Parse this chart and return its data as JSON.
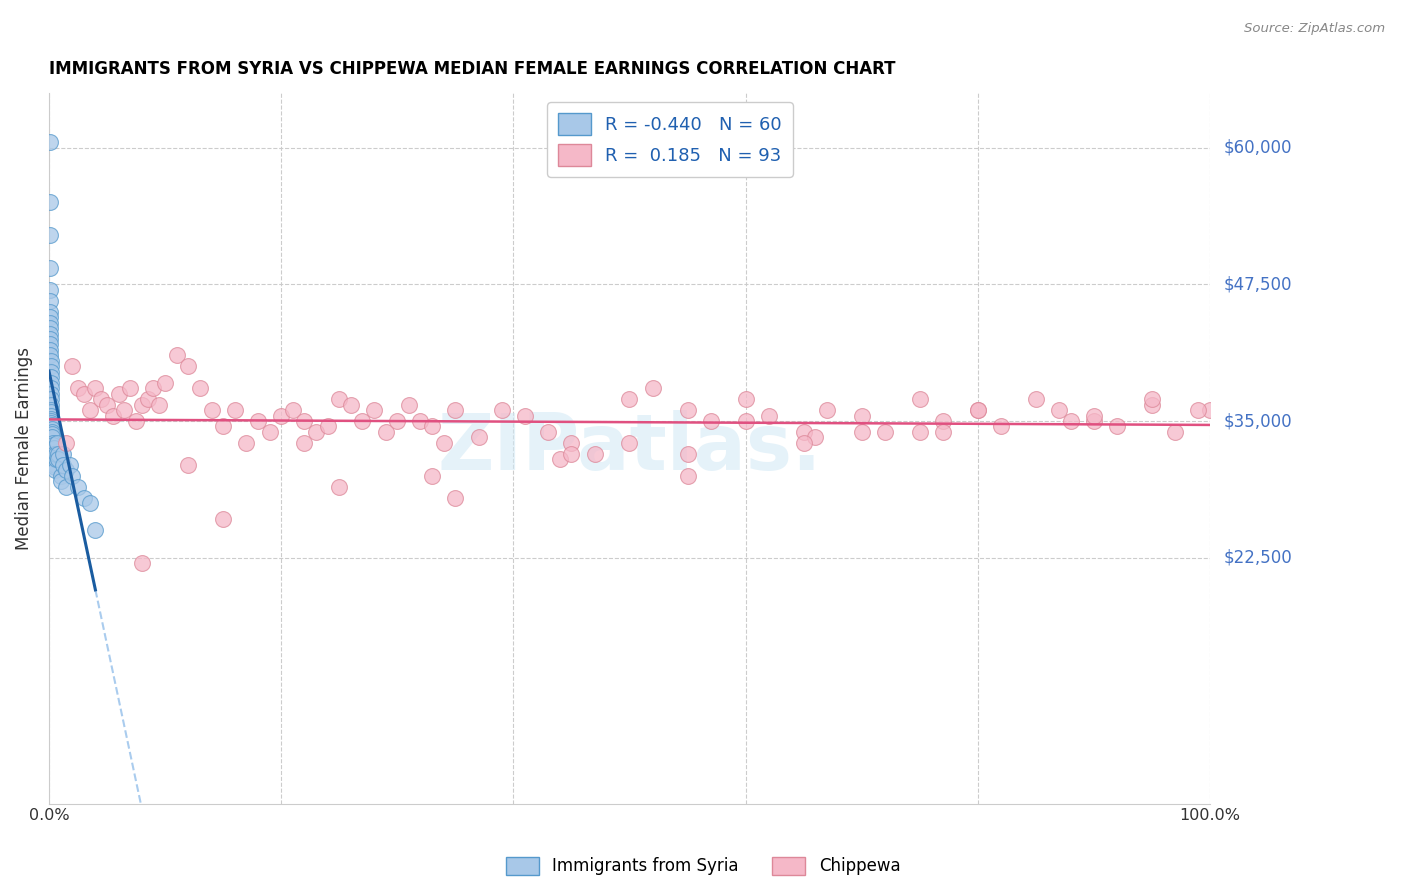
{
  "title": "IMMIGRANTS FROM SYRIA VS CHIPPEWA MEDIAN FEMALE EARNINGS CORRELATION CHART",
  "source": "Source: ZipAtlas.com",
  "ylabel": "Median Female Earnings",
  "blue_R": -0.44,
  "blue_N": 60,
  "pink_R": 0.185,
  "pink_N": 93,
  "blue_face": "#a8c8e8",
  "blue_edge": "#5599cc",
  "pink_face": "#f5b8c8",
  "pink_edge": "#dd8899",
  "blue_line_color": "#1a5ca0",
  "pink_line_color": "#e05080",
  "dash_color": "#aaccee",
  "legend_label1": "Immigrants from Syria",
  "legend_label2": "Chippewa",
  "label_color": "#4472C4",
  "yaxis_values": [
    22500,
    35000,
    47500,
    60000
  ],
  "yaxis_labels": [
    "$22,500",
    "$35,000",
    "$47,500",
    "$60,000"
  ],
  "ylim": [
    0,
    65000
  ],
  "xlim": [
    0,
    100
  ],
  "xtick_left": "0.0%",
  "xtick_right": "100.0%",
  "grid_color": "#cccccc",
  "watermark": "ZIPatlas.",
  "blue_x": [
    0.05,
    0.05,
    0.05,
    0.05,
    0.05,
    0.08,
    0.08,
    0.08,
    0.1,
    0.1,
    0.1,
    0.1,
    0.1,
    0.12,
    0.12,
    0.15,
    0.15,
    0.15,
    0.15,
    0.15,
    0.15,
    0.15,
    0.15,
    0.18,
    0.18,
    0.2,
    0.2,
    0.2,
    0.2,
    0.2,
    0.25,
    0.25,
    0.3,
    0.3,
    0.3,
    0.35,
    0.35,
    0.4,
    0.4,
    0.4,
    0.5,
    0.5,
    0.5,
    0.6,
    0.6,
    0.7,
    0.8,
    0.8,
    1.0,
    1.0,
    1.2,
    1.2,
    1.5,
    1.5,
    1.8,
    2.0,
    2.5,
    3.0,
    3.5,
    4.0
  ],
  "blue_y": [
    60500,
    55000,
    52000,
    49000,
    47000,
    46000,
    45000,
    44500,
    44000,
    43500,
    43000,
    42500,
    42000,
    41500,
    41000,
    40500,
    40000,
    39500,
    39000,
    38500,
    38000,
    37500,
    37000,
    36500,
    36000,
    35800,
    35500,
    35200,
    35000,
    34800,
    34600,
    34300,
    34000,
    33800,
    33500,
    33000,
    32800,
    32500,
    32000,
    31500,
    31000,
    30800,
    30500,
    31500,
    32000,
    33000,
    32000,
    31500,
    30000,
    29500,
    32000,
    31000,
    30500,
    29000,
    31000,
    30000,
    29000,
    28000,
    27500,
    25000
  ],
  "pink_x": [
    1.5,
    2.0,
    2.5,
    3.0,
    3.5,
    4.0,
    4.5,
    5.0,
    5.5,
    6.0,
    6.5,
    7.0,
    7.5,
    8.0,
    8.5,
    9.0,
    9.5,
    10.0,
    11.0,
    12.0,
    13.0,
    14.0,
    15.0,
    16.0,
    17.0,
    18.0,
    19.0,
    20.0,
    21.0,
    22.0,
    23.0,
    24.0,
    25.0,
    26.0,
    27.0,
    28.0,
    29.0,
    30.0,
    31.0,
    32.0,
    33.0,
    34.0,
    35.0,
    37.0,
    39.0,
    41.0,
    43.0,
    45.0,
    47.0,
    50.0,
    52.0,
    55.0,
    57.0,
    60.0,
    62.0,
    65.0,
    67.0,
    70.0,
    72.0,
    75.0,
    77.0,
    80.0,
    82.0,
    85.0,
    87.0,
    90.0,
    92.0,
    95.0,
    97.0,
    100.0,
    12.0,
    22.0,
    33.0,
    44.0,
    55.0,
    66.0,
    77.0,
    88.0,
    99.0,
    50.0,
    60.0,
    70.0,
    80.0,
    90.0,
    95.0,
    8.0,
    15.0,
    25.0,
    35.0,
    45.0,
    55.0,
    65.0,
    75.0
  ],
  "pink_y": [
    33000,
    40000,
    38000,
    37500,
    36000,
    38000,
    37000,
    36500,
    35500,
    37500,
    36000,
    38000,
    35000,
    36500,
    37000,
    38000,
    36500,
    38500,
    41000,
    40000,
    38000,
    36000,
    34500,
    36000,
    33000,
    35000,
    34000,
    35500,
    36000,
    35000,
    34000,
    34500,
    37000,
    36500,
    35000,
    36000,
    34000,
    35000,
    36500,
    35000,
    34500,
    33000,
    36000,
    33500,
    36000,
    35500,
    34000,
    33000,
    32000,
    37000,
    38000,
    36000,
    35000,
    37000,
    35500,
    34000,
    36000,
    35500,
    34000,
    37000,
    35000,
    36000,
    34500,
    37000,
    36000,
    35000,
    34500,
    36500,
    34000,
    36000,
    31000,
    33000,
    30000,
    31500,
    32000,
    33500,
    34000,
    35000,
    36000,
    33000,
    35000,
    34000,
    36000,
    35500,
    37000,
    22000,
    26000,
    29000,
    28000,
    32000,
    30000,
    33000,
    34000
  ]
}
